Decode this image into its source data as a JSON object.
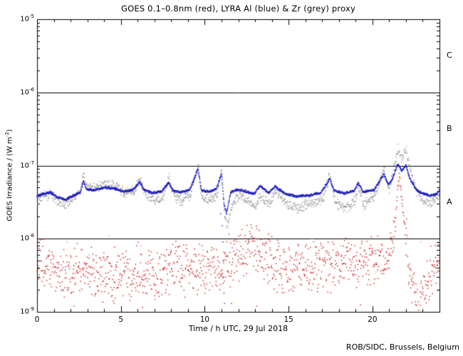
{
  "chart_data": {
    "type": "scatter",
    "title": "GOES 0.1–0.8nm (red), LYRA Al (blue) & Zr (grey) proxy",
    "xlabel": "Time / h UTC, 29 Jul 2018",
    "ylabel": {
      "prefix": "GOES Irradiance / (W m",
      "sup": "-2",
      "suffix": ")"
    },
    "credit": "ROB/SIDC, Brussels, Belgium",
    "xlim": [
      0,
      24
    ],
    "x_major_ticks": [
      0,
      5,
      10,
      15,
      20
    ],
    "x_minor_step": 1,
    "ylim_log": [
      -9,
      -5
    ],
    "y_tick_exponents": [
      -5,
      -6,
      -7,
      -8,
      -9
    ],
    "flare_class_lines_exp": [
      -6,
      -7,
      -8
    ],
    "class_labels": [
      {
        "label": "C",
        "band_exp": [
          -6,
          -5
        ]
      },
      {
        "label": "B",
        "band_exp": [
          -7,
          -6
        ]
      },
      {
        "label": "A",
        "band_exp": [
          -8,
          -7
        ]
      }
    ],
    "colors": {
      "goes": "#cc1111",
      "lyra_al": "#1a1ac0",
      "lyra_zr": "#999999",
      "axis": "#000000",
      "background": "#ffffff"
    },
    "noise_seed": 1234,
    "series": [
      {
        "name": "GOES 0.1-0.8nm",
        "color_key": "goes",
        "step": 0.02,
        "size": 1.4,
        "noise": 0.42,
        "noise_high": 0.07,
        "noise_switch": 1.2e-08,
        "anchors": [
          [
            0,
            4.5e-09
          ],
          [
            1,
            3.6e-09
          ],
          [
            2,
            3.2e-09
          ],
          [
            3,
            3.8e-09
          ],
          [
            4,
            3e-09
          ],
          [
            5,
            3.4e-09
          ],
          [
            6,
            3.8e-09
          ],
          [
            7,
            3.4e-09
          ],
          [
            8,
            4.2e-09
          ],
          [
            9,
            3.6e-09
          ],
          [
            10,
            3.8e-09
          ],
          [
            11,
            4.2e-09
          ],
          [
            12,
            5.5e-09
          ],
          [
            12.8,
            7e-09
          ],
          [
            13.6,
            6e-09
          ],
          [
            14.5,
            4e-09
          ],
          [
            15.5,
            3.6e-09
          ],
          [
            16.5,
            4.2e-09
          ],
          [
            17.5,
            4.4e-09
          ],
          [
            18.5,
            4.6e-09
          ],
          [
            19.5,
            5e-09
          ],
          [
            20.4,
            4.6e-09
          ],
          [
            21.0,
            6e-09
          ],
          [
            21.3,
            8e-09
          ],
          [
            21.45,
            3e-08
          ],
          [
            21.6,
            8e-08
          ],
          [
            21.75,
            3.5e-08
          ],
          [
            21.95,
            1.3e-08
          ],
          [
            22.15,
            5e-09
          ],
          [
            22.4,
            2e-09
          ],
          [
            22.7,
            1.3e-09
          ],
          [
            23.1,
            2.2e-09
          ],
          [
            23.5,
            3.2e-09
          ],
          [
            24,
            4.5e-09
          ]
        ]
      },
      {
        "name": "LYRA Zr proxy",
        "color_key": "lyra_zr",
        "step": 0.02,
        "size": 1.4,
        "noise": 0.085,
        "anchors": [
          [
            0,
            3.5e-08
          ],
          [
            0.4,
            3.8e-08
          ],
          [
            0.8,
            4e-08
          ],
          [
            1.2,
            3.3e-08
          ],
          [
            1.7,
            3e-08
          ],
          [
            2.2,
            3.6e-08
          ],
          [
            2.6,
            4.6e-08
          ],
          [
            2.76,
            8e-08
          ],
          [
            3.0,
            5.2e-08
          ],
          [
            3.5,
            5e-08
          ],
          [
            4.1,
            5.6e-08
          ],
          [
            4.7,
            5.2e-08
          ],
          [
            5.2,
            4.2e-08
          ],
          [
            5.8,
            4.5e-08
          ],
          [
            6.12,
            6.4e-08
          ],
          [
            6.45,
            4.1e-08
          ],
          [
            7.05,
            3.2e-08
          ],
          [
            7.5,
            3.7e-08
          ],
          [
            7.86,
            6.8e-08
          ],
          [
            8.15,
            3.9e-08
          ],
          [
            8.6,
            3.3e-08
          ],
          [
            9.15,
            4e-08
          ],
          [
            9.6,
            1.05e-07
          ],
          [
            9.85,
            3.4e-08
          ],
          [
            10.35,
            3.4e-08
          ],
          [
            10.75,
            4e-08
          ],
          [
            11.0,
            8.8e-08
          ],
          [
            11.2,
            2e-08
          ],
          [
            11.35,
            1.5e-08
          ],
          [
            11.65,
            3.1e-08
          ],
          [
            12.1,
            3.9e-08
          ],
          [
            12.6,
            3.2e-08
          ],
          [
            13.05,
            2.7e-08
          ],
          [
            13.35,
            3.9e-08
          ],
          [
            13.9,
            3e-08
          ],
          [
            14.2,
            4.6e-08
          ],
          [
            14.9,
            2.9e-08
          ],
          [
            15.6,
            2.6e-08
          ],
          [
            16.3,
            3.1e-08
          ],
          [
            17.05,
            3.4e-08
          ],
          [
            17.45,
            7.4e-08
          ],
          [
            17.8,
            3.1e-08
          ],
          [
            18.4,
            2.6e-08
          ],
          [
            18.95,
            3.3e-08
          ],
          [
            19.15,
            5e-08
          ],
          [
            19.5,
            3e-08
          ],
          [
            20.15,
            3.8e-08
          ],
          [
            20.68,
            8.8e-08
          ],
          [
            21.0,
            4.6e-08
          ],
          [
            21.2,
            7e-08
          ],
          [
            21.5,
            1.75e-07
          ],
          [
            21.75,
            1.2e-07
          ],
          [
            22.0,
            1.7e-07
          ],
          [
            22.25,
            9e-08
          ],
          [
            22.6,
            4.5e-08
          ],
          [
            23.0,
            3.4e-08
          ],
          [
            23.5,
            3.1e-08
          ],
          [
            24,
            3.9e-08
          ]
        ]
      },
      {
        "name": "LYRA Al proxy",
        "color_key": "lyra_al",
        "step": 0.014,
        "size": 1.5,
        "noise": 0.02,
        "anchors": [
          [
            0,
            3.8e-08
          ],
          [
            0.4,
            4.1e-08
          ],
          [
            0.8,
            4.3e-08
          ],
          [
            1.2,
            3.7e-08
          ],
          [
            1.7,
            3.4e-08
          ],
          [
            2.2,
            3.9e-08
          ],
          [
            2.6,
            4.4e-08
          ],
          [
            2.76,
            6.2e-08
          ],
          [
            2.95,
            4.7e-08
          ],
          [
            3.4,
            4.6e-08
          ],
          [
            4.0,
            5e-08
          ],
          [
            4.6,
            4.9e-08
          ],
          [
            5.1,
            4.4e-08
          ],
          [
            5.7,
            4.6e-08
          ],
          [
            6.12,
            6e-08
          ],
          [
            6.35,
            4.7e-08
          ],
          [
            6.9,
            4.2e-08
          ],
          [
            7.4,
            4.4e-08
          ],
          [
            7.86,
            5.8e-08
          ],
          [
            8.1,
            4.5e-08
          ],
          [
            8.5,
            4.3e-08
          ],
          [
            9.1,
            4.6e-08
          ],
          [
            9.6,
            9e-08
          ],
          [
            9.8,
            4.6e-08
          ],
          [
            10.3,
            4.4e-08
          ],
          [
            10.7,
            4.8e-08
          ],
          [
            11.0,
            7.8e-08
          ],
          [
            11.15,
            3e-08
          ],
          [
            11.3,
            2.2e-08
          ],
          [
            11.55,
            4.3e-08
          ],
          [
            12.0,
            4.7e-08
          ],
          [
            12.5,
            4.4e-08
          ],
          [
            12.95,
            4.1e-08
          ],
          [
            13.3,
            5.3e-08
          ],
          [
            13.8,
            4.2e-08
          ],
          [
            14.2,
            5.2e-08
          ],
          [
            14.8,
            4.1e-08
          ],
          [
            15.5,
            3.8e-08
          ],
          [
            16.2,
            3.9e-08
          ],
          [
            16.9,
            4.2e-08
          ],
          [
            17.45,
            6.6e-08
          ],
          [
            17.7,
            4.6e-08
          ],
          [
            18.3,
            4.2e-08
          ],
          [
            18.9,
            4.5e-08
          ],
          [
            19.15,
            5.8e-08
          ],
          [
            19.45,
            4.4e-08
          ],
          [
            20.1,
            4.6e-08
          ],
          [
            20.68,
            7.6e-08
          ],
          [
            20.95,
            5.4e-08
          ],
          [
            21.2,
            6.5e-08
          ],
          [
            21.5,
            1.05e-07
          ],
          [
            21.75,
            8.5e-08
          ],
          [
            22.0,
            1e-07
          ],
          [
            22.2,
            7e-08
          ],
          [
            22.55,
            4.9e-08
          ],
          [
            22.9,
            4.2e-08
          ],
          [
            23.4,
            3.9e-08
          ],
          [
            23.8,
            4e-08
          ],
          [
            24,
            4.6e-08
          ]
        ]
      }
    ],
    "outliers": [
      {
        "color_key": "lyra_al",
        "points": [
          [
            10.95,
            2.2e-08
          ],
          [
            11.05,
            1.5e-08
          ],
          [
            11.08,
            9e-09
          ],
          [
            11.1,
            5e-09
          ],
          [
            11.12,
            3e-09
          ],
          [
            11.15,
            1.8e-09
          ],
          [
            11.18,
            1.3e-09
          ]
        ]
      },
      {
        "color_key": "lyra_zr",
        "points": [
          [
            1.8,
            9e-09
          ],
          [
            3.1,
            6e-09
          ],
          [
            4.3,
            1.1e-08
          ],
          [
            6.2,
            8e-09
          ],
          [
            7.6,
            5e-09
          ],
          [
            9.9,
            7e-09
          ],
          [
            12.1,
            9e-09
          ],
          [
            14.0,
            6e-09
          ],
          [
            16.4,
            1e-08
          ],
          [
            18.1,
            8e-09
          ],
          [
            20.2,
            3.5e-09
          ],
          [
            22.9,
            9e-09
          ]
        ]
      },
      {
        "color_key": "goes",
        "points": [
          [
            2.2,
            1.2e-09
          ],
          [
            4.6,
            1.3e-09
          ],
          [
            6.3,
            1.15e-09
          ],
          [
            11.6,
            1.3e-09
          ],
          [
            13.1,
            1.2e-09
          ],
          [
            19.3,
            1.25e-09
          ]
        ]
      }
    ]
  }
}
